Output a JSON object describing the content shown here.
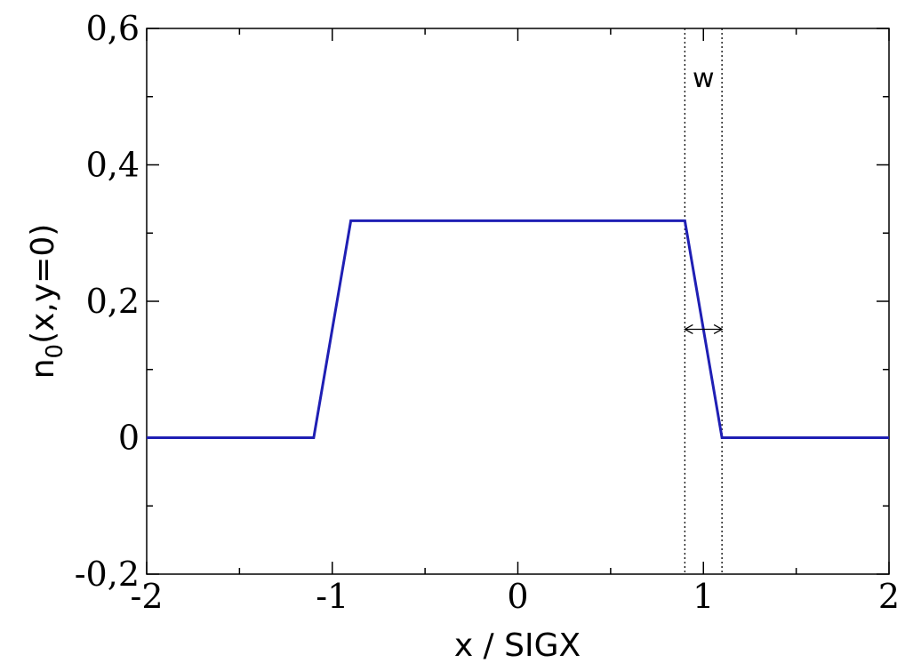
{
  "chart_data": {
    "type": "line",
    "title": "",
    "xlabel": "x / SIGX",
    "ylabel_main": "n",
    "ylabel_sub": "0",
    "ylabel_rest": "(x,y=0)",
    "xlim": [
      -2,
      2
    ],
    "ylim": [
      -0.2,
      0.6
    ],
    "x_ticks": [
      {
        "value": -2,
        "label": "-2"
      },
      {
        "value": -1,
        "label": "-1"
      },
      {
        "value": 0,
        "label": "0"
      },
      {
        "value": 1,
        "label": "1"
      },
      {
        "value": 2,
        "label": "2"
      }
    ],
    "x_minor": [
      -1.5,
      -0.5,
      0.5,
      1.5
    ],
    "y_ticks": [
      {
        "value": -0.2,
        "label": "-0,2"
      },
      {
        "value": 0,
        "label": "0"
      },
      {
        "value": 0.2,
        "label": "0,2"
      },
      {
        "value": 0.4,
        "label": "0,4"
      },
      {
        "value": 0.6,
        "label": "0,6"
      }
    ],
    "y_minor": [
      -0.1,
      0.1,
      0.3,
      0.5
    ],
    "grid": false,
    "series": [
      {
        "color": "#1f1fb4",
        "points": [
          [
            -2,
            0
          ],
          [
            -1.1,
            0
          ],
          [
            -0.9,
            0.318
          ],
          [
            0.9,
            0.318
          ],
          [
            1.1,
            0
          ],
          [
            2,
            0
          ]
        ]
      }
    ],
    "annotations": {
      "width_label": "w",
      "guide_x": [
        0.9,
        1.1
      ],
      "arrow_y": 0.159
    }
  }
}
